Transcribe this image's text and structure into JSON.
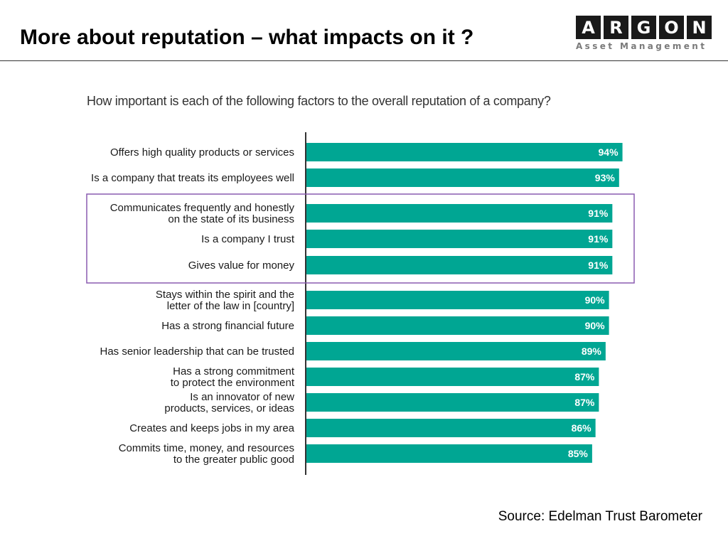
{
  "header": {
    "title": "More about reputation – what impacts on it ?",
    "logo_letters": [
      "A",
      "R",
      "G",
      "O",
      "N"
    ],
    "logo_subtitle": "Asset Management"
  },
  "chart_data": {
    "type": "bar",
    "orientation": "horizontal",
    "title": "How important is each of the following factors to the overall reputation of a company?",
    "categories": [
      "Offers high quality products or services",
      "Is a company that treats its employees well",
      "Communicates frequently and honestly on the state of its business",
      "Is a company I trust",
      "Gives value for money",
      "Stays within the spirit and the letter of the law in [country]",
      "Has a strong financial future",
      "Has senior leadership that can be trusted",
      "Has a strong commitment to protect the environment",
      "Is an innovator of new products, services, or ideas",
      "Creates and keeps jobs in my area",
      "Commits time, money, and resources to the greater public good"
    ],
    "values": [
      94,
      93,
      91,
      91,
      91,
      90,
      90,
      89,
      87,
      87,
      86,
      85
    ],
    "data_labels": [
      "94%",
      "93%",
      "91%",
      "91%",
      "91%",
      "90%",
      "90%",
      "89%",
      "87%",
      "87%",
      "86%",
      "85%"
    ],
    "highlighted_categories": [
      2,
      3,
      4
    ],
    "xlim": [
      0,
      100
    ],
    "bar_color": "#00a693",
    "highlight_box_color": "#8a5bb0",
    "label_color": "#ffffff",
    "grid": false
  },
  "footer": {
    "source": "Source: Edelman Trust Barometer"
  }
}
